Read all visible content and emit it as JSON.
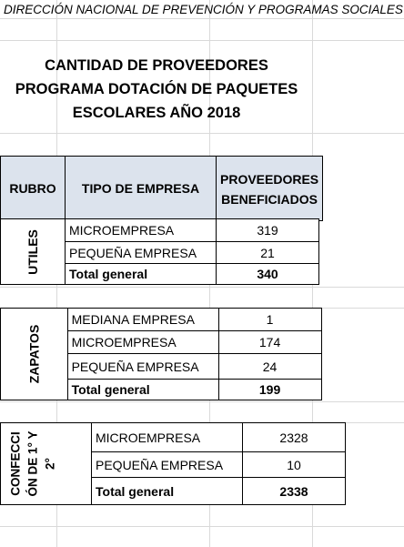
{
  "header": "DIRECCIÓN NACIONAL DE PREVENCIÓN Y PROGRAMAS SOCIALES",
  "title_lines": [
    "CANTIDAD DE PROVEEDORES",
    "PROGRAMA DOTACIÓN DE PAQUETES",
    "ESCOLARES AÑO 2018"
  ],
  "columns": {
    "rubro": "RUBRO",
    "tipo": "TIPO DE EMPRESA",
    "proveedores_line1": "PROVEEDORES",
    "proveedores_line2": "BENEFICIADOS"
  },
  "groups": [
    {
      "rubro": "UTILES",
      "rows": [
        {
          "tipo": "MICROEMPRESA",
          "valor": "319"
        },
        {
          "tipo": "PEQUEÑA EMPRESA",
          "valor": "21"
        }
      ],
      "total_label": "Total general",
      "total": "340"
    },
    {
      "rubro": "ZAPATOS",
      "rows": [
        {
          "tipo": "MEDIANA EMPRESA",
          "valor": "1"
        },
        {
          "tipo": "MICROEMPRESA",
          "valor": "174"
        },
        {
          "tipo": "PEQUEÑA EMPRESA",
          "valor": "24"
        }
      ],
      "total_label": "Total general",
      "total": "199"
    },
    {
      "rubro_line1": "CONFECCI",
      "rubro_line2": "ÓN DE 1° Y",
      "rubro_line3": "2°",
      "rows": [
        {
          "tipo": "MICROEMPRESA",
          "valor": "2328"
        },
        {
          "tipo": "PEQUEÑA EMPRESA",
          "valor": "10"
        }
      ],
      "total_label": "Total general",
      "total": "2338"
    }
  ]
}
